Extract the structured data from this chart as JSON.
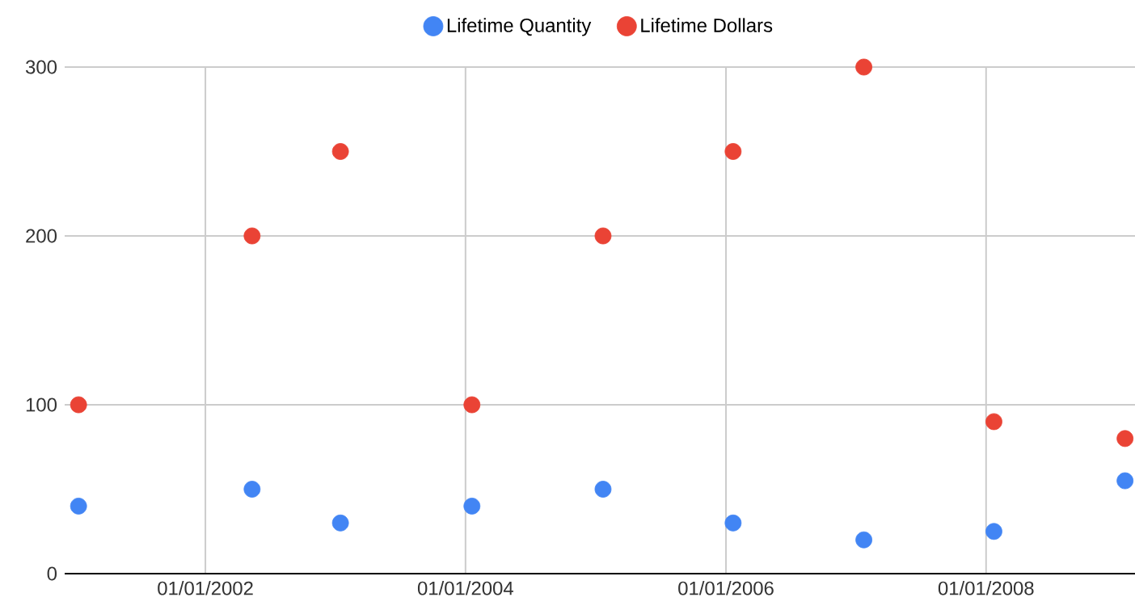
{
  "chart_data": {
    "type": "scatter",
    "x": [
      "2001-01-10",
      "2002-05-12",
      "2003-01-15",
      "2004-01-19",
      "2005-01-21",
      "2006-01-21",
      "2007-01-23",
      "2008-01-23",
      "2009-01-25"
    ],
    "series": [
      {
        "name": "Lifetime Quantity",
        "color": "#4285f4",
        "values": [
          40,
          50,
          30,
          40,
          50,
          30,
          20,
          25,
          55
        ]
      },
      {
        "name": "Lifetime Dollars",
        "color": "#ea4335",
        "values": [
          100,
          200,
          250,
          100,
          200,
          250,
          300,
          90,
          80
        ]
      }
    ],
    "xlim": [
      "2000-12-02",
      "2009-02-22"
    ],
    "xticks": [
      {
        "value": "2002-01-01",
        "label": "01/01/2002"
      },
      {
        "value": "2004-01-01",
        "label": "01/01/2004"
      },
      {
        "value": "2006-01-01",
        "label": "01/01/2006"
      },
      {
        "value": "2008-01-01",
        "label": "01/01/2008"
      }
    ],
    "ylim": [
      0,
      300
    ],
    "yticks": [
      0,
      100,
      200,
      300
    ],
    "grid": true,
    "legend": "top",
    "marker": "circle"
  }
}
